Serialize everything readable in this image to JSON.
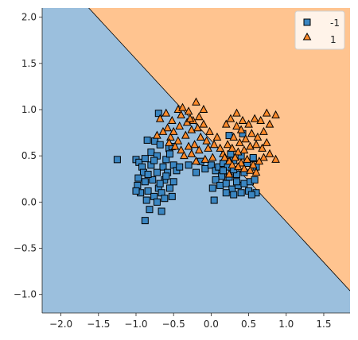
{
  "chart_data": {
    "type": "scatter",
    "title": "",
    "xlabel": "",
    "ylabel": "",
    "xlim": [
      -2.25,
      1.85
    ],
    "ylim": [
      -1.2,
      2.1
    ],
    "x_ticks": [
      -2.0,
      -1.5,
      -1.0,
      -0.5,
      0.0,
      0.5,
      1.0,
      1.5
    ],
    "x_tick_labels": [
      "−2.0",
      "−1.5",
      "−1.0",
      "−0.5",
      "0.0",
      "0.5",
      "1.0",
      "1.5"
    ],
    "y_ticks": [
      -1.0,
      -0.5,
      0.0,
      0.5,
      1.0,
      1.5,
      2.0
    ],
    "y_tick_labels": [
      "−1.0",
      "−0.5",
      "0.0",
      "0.5",
      "1.0",
      "1.5",
      "2.0"
    ],
    "grid": false,
    "legend_position": "top-right",
    "decision_boundary": {
      "points": [
        [
          -1.63,
          2.1
        ],
        [
          1.85,
          -0.96
        ]
      ],
      "region_below_class": "-1",
      "region_above_class": "1",
      "region_below_color": "#9bbfdd",
      "region_above_color": "#ffc490"
    },
    "series": [
      {
        "name": "-1",
        "marker": "square",
        "color": "#3a86c2",
        "points": [
          [
            -1.25,
            0.46
          ],
          [
            -1.0,
            0.46
          ],
          [
            -0.96,
            0.43
          ],
          [
            -0.85,
            0.67
          ],
          [
            -0.75,
            0.66
          ],
          [
            -0.68,
            0.62
          ],
          [
            -0.56,
            0.58
          ],
          [
            -0.7,
            0.96
          ],
          [
            -0.8,
            0.54
          ],
          [
            -0.88,
            0.47
          ],
          [
            -0.72,
            0.5
          ],
          [
            -0.92,
            0.38
          ],
          [
            -0.6,
            0.46
          ],
          [
            -0.5,
            0.4
          ],
          [
            -0.64,
            0.38
          ],
          [
            -0.8,
            0.4
          ],
          [
            -0.9,
            0.32
          ],
          [
            -0.97,
            0.26
          ],
          [
            -0.72,
            0.32
          ],
          [
            -0.58,
            0.32
          ],
          [
            -0.5,
            0.22
          ],
          [
            -0.62,
            0.24
          ],
          [
            -0.78,
            0.24
          ],
          [
            -0.88,
            0.22
          ],
          [
            -0.98,
            0.18
          ],
          [
            -0.7,
            0.15
          ],
          [
            -0.55,
            0.15
          ],
          [
            -0.66,
            0.1
          ],
          [
            -0.84,
            0.12
          ],
          [
            -0.94,
            0.1
          ],
          [
            -1.0,
            0.12
          ],
          [
            -0.76,
            0.06
          ],
          [
            -0.62,
            0.04
          ],
          [
            -0.52,
            0.06
          ],
          [
            -0.86,
            0.02
          ],
          [
            -0.72,
            0.0
          ],
          [
            -0.82,
            -0.08
          ],
          [
            -0.66,
            -0.1
          ],
          [
            -0.88,
            -0.2
          ],
          [
            -0.6,
            0.28
          ],
          [
            -0.46,
            0.34
          ],
          [
            -0.42,
            0.38
          ],
          [
            -0.68,
            0.2
          ],
          [
            -0.84,
            0.3
          ],
          [
            -0.76,
            0.45
          ],
          [
            -0.55,
            0.52
          ],
          [
            -0.52,
            0.6
          ],
          [
            -0.3,
            0.4
          ],
          [
            -0.2,
            0.32
          ],
          [
            -0.08,
            0.36
          ],
          [
            0.0,
            0.4
          ],
          [
            0.06,
            0.34
          ],
          [
            0.1,
            0.38
          ],
          [
            0.16,
            0.42
          ],
          [
            0.22,
            0.38
          ],
          [
            0.3,
            0.45
          ],
          [
            0.26,
            0.52
          ],
          [
            0.4,
            0.5
          ],
          [
            0.48,
            0.42
          ],
          [
            0.56,
            0.47
          ],
          [
            0.6,
            0.38
          ],
          [
            0.44,
            0.32
          ],
          [
            0.34,
            0.3
          ],
          [
            0.24,
            0.27
          ],
          [
            0.14,
            0.28
          ],
          [
            0.06,
            0.24
          ],
          [
            0.02,
            0.15
          ],
          [
            0.12,
            0.18
          ],
          [
            0.2,
            0.2
          ],
          [
            0.28,
            0.14
          ],
          [
            0.36,
            0.18
          ],
          [
            0.44,
            0.2
          ],
          [
            0.52,
            0.22
          ],
          [
            0.58,
            0.24
          ],
          [
            0.5,
            0.12
          ],
          [
            0.4,
            0.1
          ],
          [
            0.3,
            0.08
          ],
          [
            0.2,
            0.1
          ],
          [
            0.6,
            0.1
          ],
          [
            0.54,
            0.08
          ],
          [
            0.34,
            0.22
          ],
          [
            0.24,
            0.72
          ],
          [
            0.42,
            0.74
          ],
          [
            0.56,
            0.48
          ],
          [
            0.3,
            0.35
          ],
          [
            0.16,
            0.34
          ],
          [
            -0.14,
            0.44
          ],
          [
            0.04,
            0.02
          ]
        ]
      },
      {
        "name": "1",
        "marker": "triangle",
        "color": "#ff8a2a",
        "points": [
          [
            -0.44,
            1.0
          ],
          [
            -0.38,
            1.02
          ],
          [
            -0.3,
            0.98
          ],
          [
            -0.2,
            1.08
          ],
          [
            -0.1,
            1.0
          ],
          [
            -0.16,
            0.92
          ],
          [
            -0.24,
            0.88
          ],
          [
            -0.32,
            0.86
          ],
          [
            -0.42,
            0.82
          ],
          [
            -0.52,
            0.88
          ],
          [
            -0.58,
            0.8
          ],
          [
            -0.64,
            0.76
          ],
          [
            -0.54,
            0.7
          ],
          [
            -0.44,
            0.66
          ],
          [
            -0.34,
            0.72
          ],
          [
            -0.26,
            0.78
          ],
          [
            -0.18,
            0.8
          ],
          [
            -0.1,
            0.84
          ],
          [
            -0.02,
            0.76
          ],
          [
            -0.06,
            0.66
          ],
          [
            -0.14,
            0.7
          ],
          [
            -0.22,
            0.62
          ],
          [
            -0.3,
            0.6
          ],
          [
            -0.4,
            0.56
          ],
          [
            -0.48,
            0.6
          ],
          [
            -0.36,
            0.5
          ],
          [
            -0.26,
            0.52
          ],
          [
            -0.16,
            0.56
          ],
          [
            -0.04,
            0.58
          ],
          [
            0.04,
            0.62
          ],
          [
            0.08,
            0.7
          ],
          [
            0.02,
            0.48
          ],
          [
            -0.08,
            0.46
          ],
          [
            -0.2,
            0.44
          ],
          [
            -0.4,
            0.94
          ],
          [
            -0.6,
            0.96
          ],
          [
            -0.68,
            0.9
          ],
          [
            -0.72,
            0.72
          ],
          [
            -0.28,
            0.9
          ],
          [
            -0.5,
            0.76
          ],
          [
            0.2,
            0.84
          ],
          [
            0.26,
            0.9
          ],
          [
            0.34,
            0.96
          ],
          [
            0.42,
            0.88
          ],
          [
            0.5,
            0.84
          ],
          [
            0.58,
            0.9
          ],
          [
            0.66,
            0.88
          ],
          [
            0.74,
            0.96
          ],
          [
            0.78,
            0.84
          ],
          [
            0.7,
            0.76
          ],
          [
            0.62,
            0.7
          ],
          [
            0.54,
            0.74
          ],
          [
            0.46,
            0.68
          ],
          [
            0.38,
            0.64
          ],
          [
            0.3,
            0.7
          ],
          [
            0.22,
            0.62
          ],
          [
            0.28,
            0.58
          ],
          [
            0.36,
            0.54
          ],
          [
            0.44,
            0.56
          ],
          [
            0.52,
            0.6
          ],
          [
            0.6,
            0.62
          ],
          [
            0.68,
            0.58
          ],
          [
            0.74,
            0.64
          ],
          [
            0.78,
            0.52
          ],
          [
            0.7,
            0.48
          ],
          [
            0.64,
            0.44
          ],
          [
            0.56,
            0.4
          ],
          [
            0.48,
            0.46
          ],
          [
            0.4,
            0.42
          ],
          [
            0.32,
            0.48
          ],
          [
            0.24,
            0.44
          ],
          [
            0.16,
            0.52
          ],
          [
            0.12,
            0.58
          ],
          [
            0.28,
            0.4
          ],
          [
            0.36,
            0.38
          ],
          [
            0.44,
            0.36
          ],
          [
            0.52,
            0.34
          ],
          [
            0.6,
            0.32
          ],
          [
            0.86,
            0.94
          ],
          [
            0.86,
            0.46
          ],
          [
            0.34,
            0.82
          ],
          [
            0.4,
            0.78
          ],
          [
            -0.56,
            0.64
          ],
          [
            0.18,
            0.48
          ],
          [
            0.24,
            0.3
          ]
        ]
      }
    ]
  }
}
